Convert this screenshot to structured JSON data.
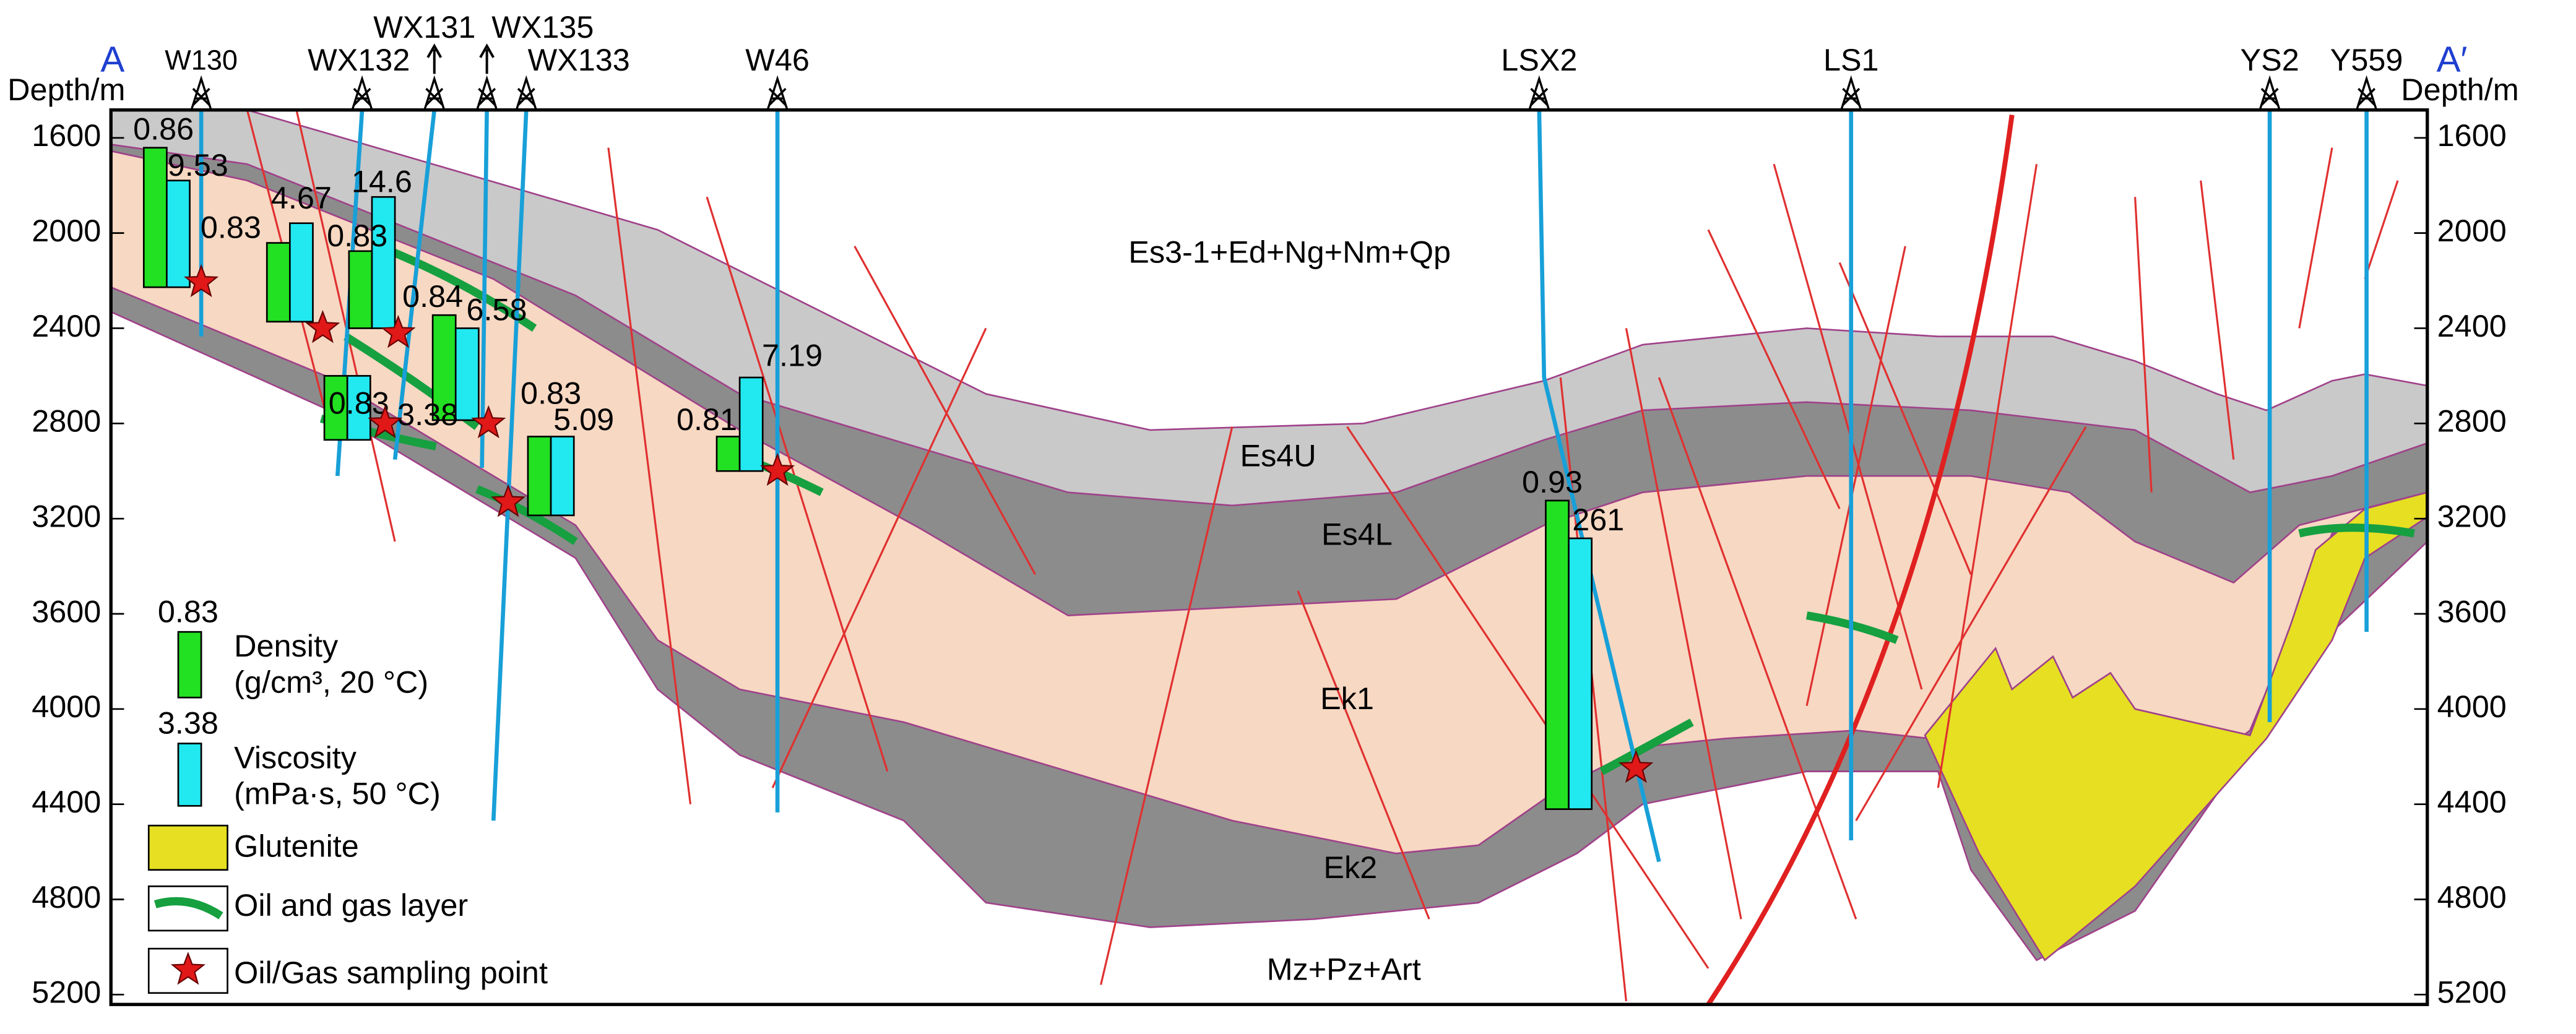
{
  "axis": {
    "title_left": "Depth/m",
    "title_right": "Depth/m",
    "ticks": [
      1600,
      2000,
      2400,
      2800,
      3200,
      3600,
      4000,
      4400,
      4800,
      5200
    ]
  },
  "section": {
    "start": "A",
    "end": "A′"
  },
  "wells": [
    "W130",
    "WX132",
    "WX131",
    "WX135",
    "WX133",
    "W46",
    "LSX2",
    "LS1",
    "YS2",
    "Y559"
  ],
  "layers": [
    "Es3-1+Ed+Ng+Nm+Qp",
    "Es4U",
    "Es4L",
    "Ek1",
    "Ek2",
    "Mz+Pz+Art"
  ],
  "samples": [
    {
      "density": 0.86,
      "viscosity": 9.53
    },
    {
      "density": 0.83,
      "viscosity": 4.67
    },
    {
      "density": 0.83,
      "viscosity": 14.6
    },
    {
      "density": 0.84,
      "viscosity": 6.58
    },
    {
      "density": 0.83,
      "viscosity": 3.38
    },
    {
      "density": 0.83,
      "viscosity": 5.09
    },
    {
      "density": 0.81,
      "viscosity": 7.19
    },
    {
      "density": 0.93,
      "viscosity": 261
    }
  ],
  "legend": {
    "density_value": 0.83,
    "density": "Density",
    "density_unit": "(g/cm³, 20 °C)",
    "viscosity_value": 3.38,
    "viscosity": "Viscosity",
    "viscosity_unit": "(mPa·s, 50 °C)",
    "glutenite": "Glutenite",
    "oil_layer": "Oil and gas layer",
    "sampling_point": "Oil/Gas sampling point"
  }
}
